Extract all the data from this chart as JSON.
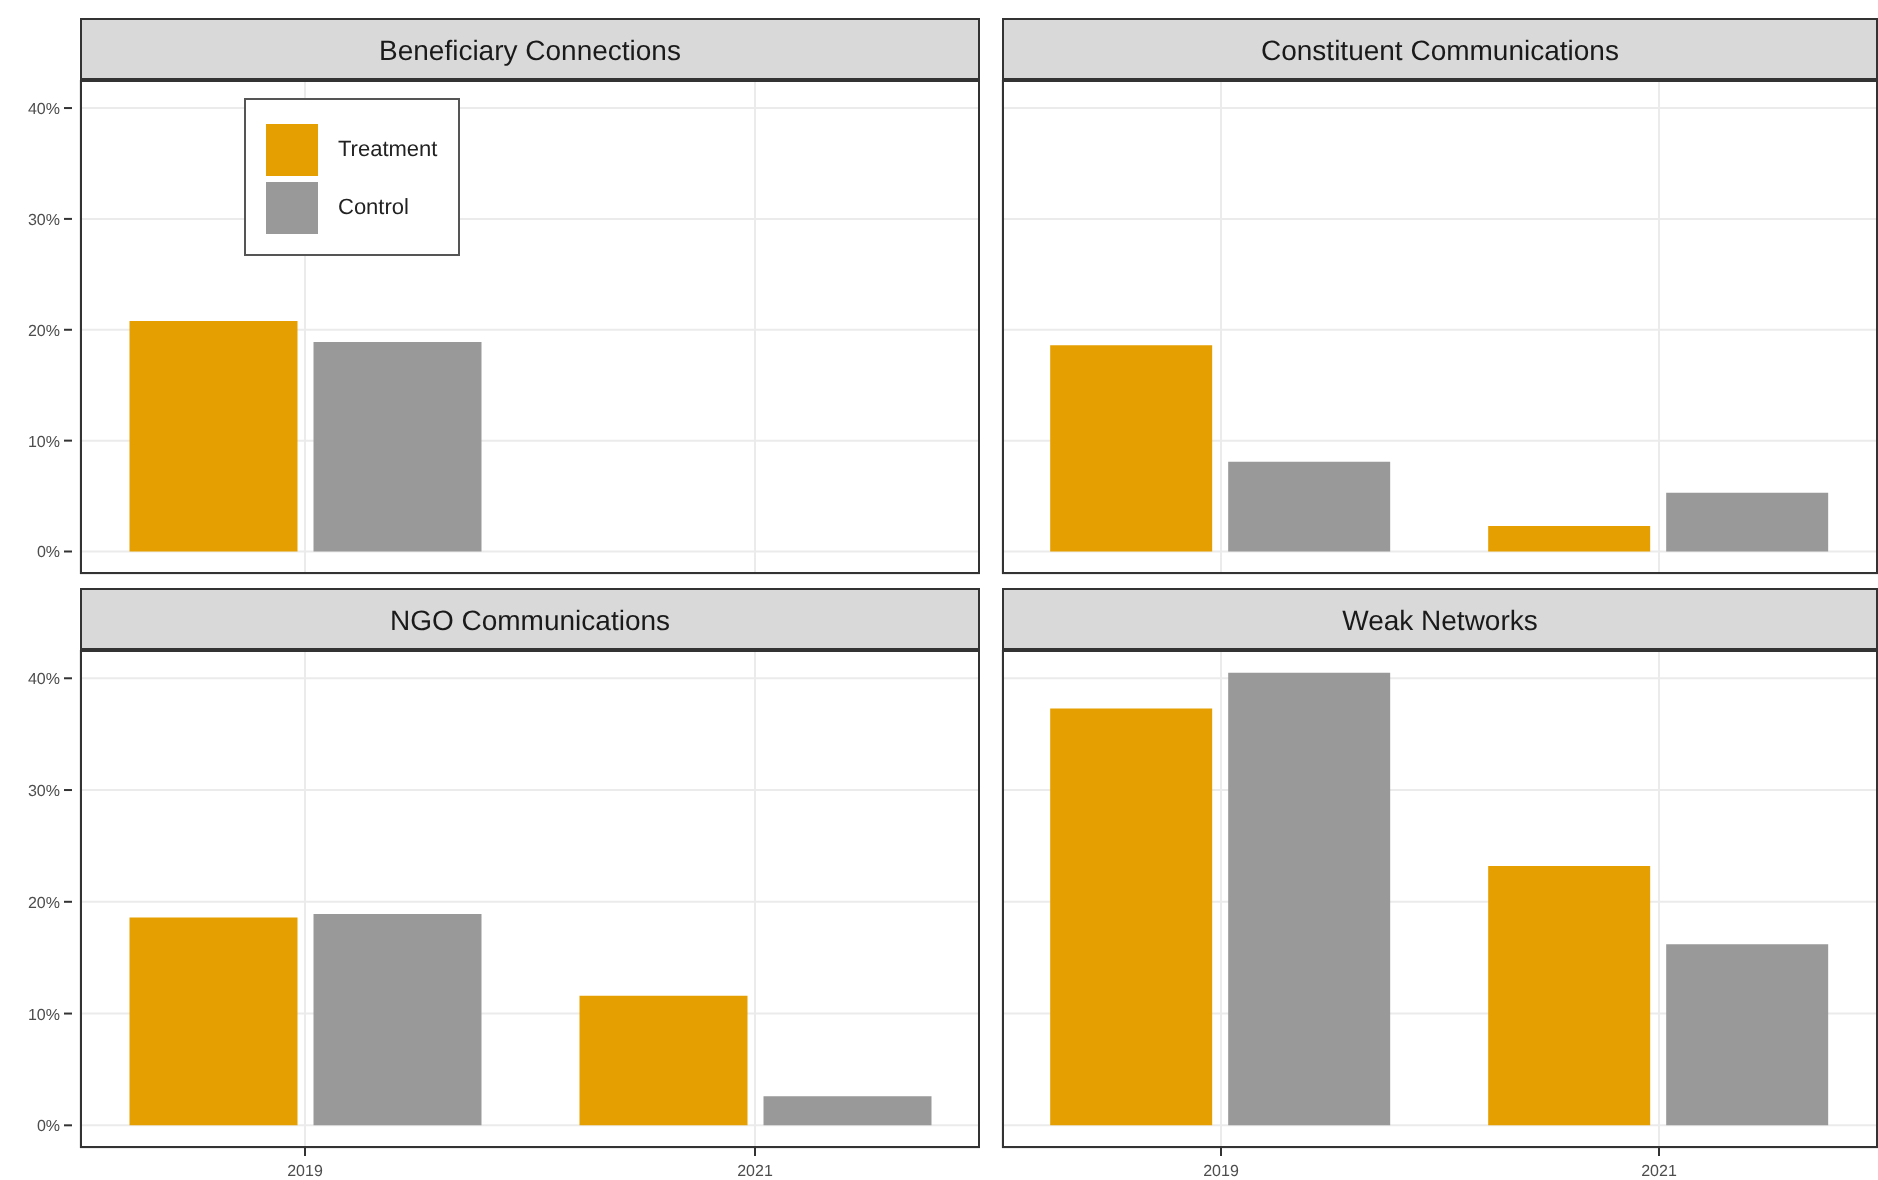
{
  "chart_data": [
    {
      "type": "bar",
      "title": "Beneficiary Connections",
      "categories": [
        "2019",
        "2021"
      ],
      "series": [
        {
          "name": "Treatment",
          "color": "#e69f00",
          "values": [
            20.8,
            null
          ]
        },
        {
          "name": "Control",
          "color": "#999999",
          "values": [
            18.9,
            null
          ]
        }
      ],
      "ylim": [
        -2.03,
        42.53
      ],
      "yticks": [
        {
          "value": 0,
          "label": "0%"
        },
        {
          "value": 10,
          "label": "10%"
        },
        {
          "value": 20,
          "label": "20%"
        },
        {
          "value": 30,
          "label": "30%"
        },
        {
          "value": 40,
          "label": "40%"
        }
      ],
      "grid": true,
      "legend": "top left",
      "tick_labels": "y"
    },
    {
      "type": "bar",
      "title": "Constituent Communications",
      "categories": [
        "2019",
        "2021"
      ],
      "series": [
        {
          "color": "#e69f00",
          "values": [
            18.6,
            2.3
          ]
        },
        {
          "color": "#999999",
          "values": [
            8.1,
            5.3
          ]
        }
      ],
      "ylim": [
        -2.03,
        42.53
      ],
      "yticks": [
        {
          "value": 0,
          "label": null
        },
        {
          "value": 10,
          "label": null
        },
        {
          "value": 20,
          "label": null
        },
        {
          "value": 30,
          "label": null
        },
        {
          "value": 40,
          "label": null
        }
      ],
      "grid": true,
      "tick_labels": false
    },
    {
      "type": "bar",
      "title": "NGO Communications",
      "categories": [
        "2019",
        "2021"
      ],
      "series": [
        {
          "color": "#e69f00",
          "values": [
            18.6,
            11.6
          ]
        },
        {
          "color": "#999999",
          "values": [
            18.9,
            2.6
          ]
        }
      ],
      "ylim": [
        -2.03,
        42.53
      ],
      "yticks": [
        {
          "value": 0,
          "label": "0%"
        },
        {
          "value": 10,
          "label": "10%"
        },
        {
          "value": 20,
          "label": "20%"
        },
        {
          "value": 30,
          "label": "30%"
        },
        {
          "value": 40,
          "label": "40%"
        }
      ],
      "grid": true
    },
    {
      "type": "bar",
      "title": "Weak Networks",
      "categories": [
        "2019",
        "2021"
      ],
      "series": [
        {
          "color": "#e69f00",
          "values": [
            37.3,
            23.2
          ]
        },
        {
          "color": "#999999",
          "values": [
            40.5,
            16.2
          ]
        }
      ],
      "ylim": [
        -2.03,
        42.53
      ],
      "yticks": [
        {
          "value": 0,
          "label": null
        },
        {
          "value": 10,
          "label": null
        },
        {
          "value": 20,
          "label": null
        },
        {
          "value": 30,
          "label": null
        },
        {
          "value": 40,
          "label": null
        }
      ],
      "grid": true,
      "tick_labels": "x"
    }
  ]
}
